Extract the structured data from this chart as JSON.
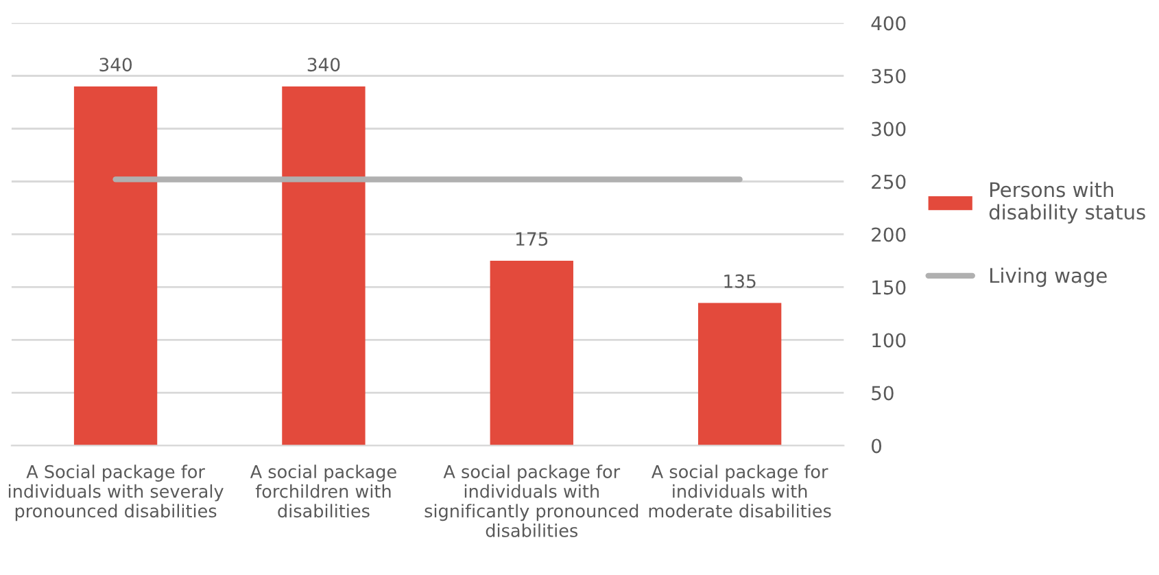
{
  "chart_data": {
    "type": "bar",
    "categories": [
      "A Social package for\nindividuals with severaly\npronounced disabilities",
      "A social package\nforchildren with\ndisabilities",
      "A social package for\nindividuals with\nsignificantly pronounced\ndisabilities",
      "A social package for\nindividuals with\nmoderate disabilities"
    ],
    "series": [
      {
        "name": "Persons with\ndisability status",
        "color": "#e34a3c",
        "values": [
          340,
          340,
          175,
          135
        ],
        "value_labels": [
          "340",
          "340",
          "175",
          "135"
        ]
      },
      {
        "name": "Living wage",
        "type": "line",
        "color": "#b0b0b0",
        "values": [
          252,
          252,
          252,
          252
        ]
      }
    ],
    "ylim": [
      0,
      400
    ],
    "yticks": [
      0,
      50,
      100,
      150,
      200,
      250,
      300,
      350,
      400
    ],
    "grid": "y",
    "legend": "right"
  }
}
